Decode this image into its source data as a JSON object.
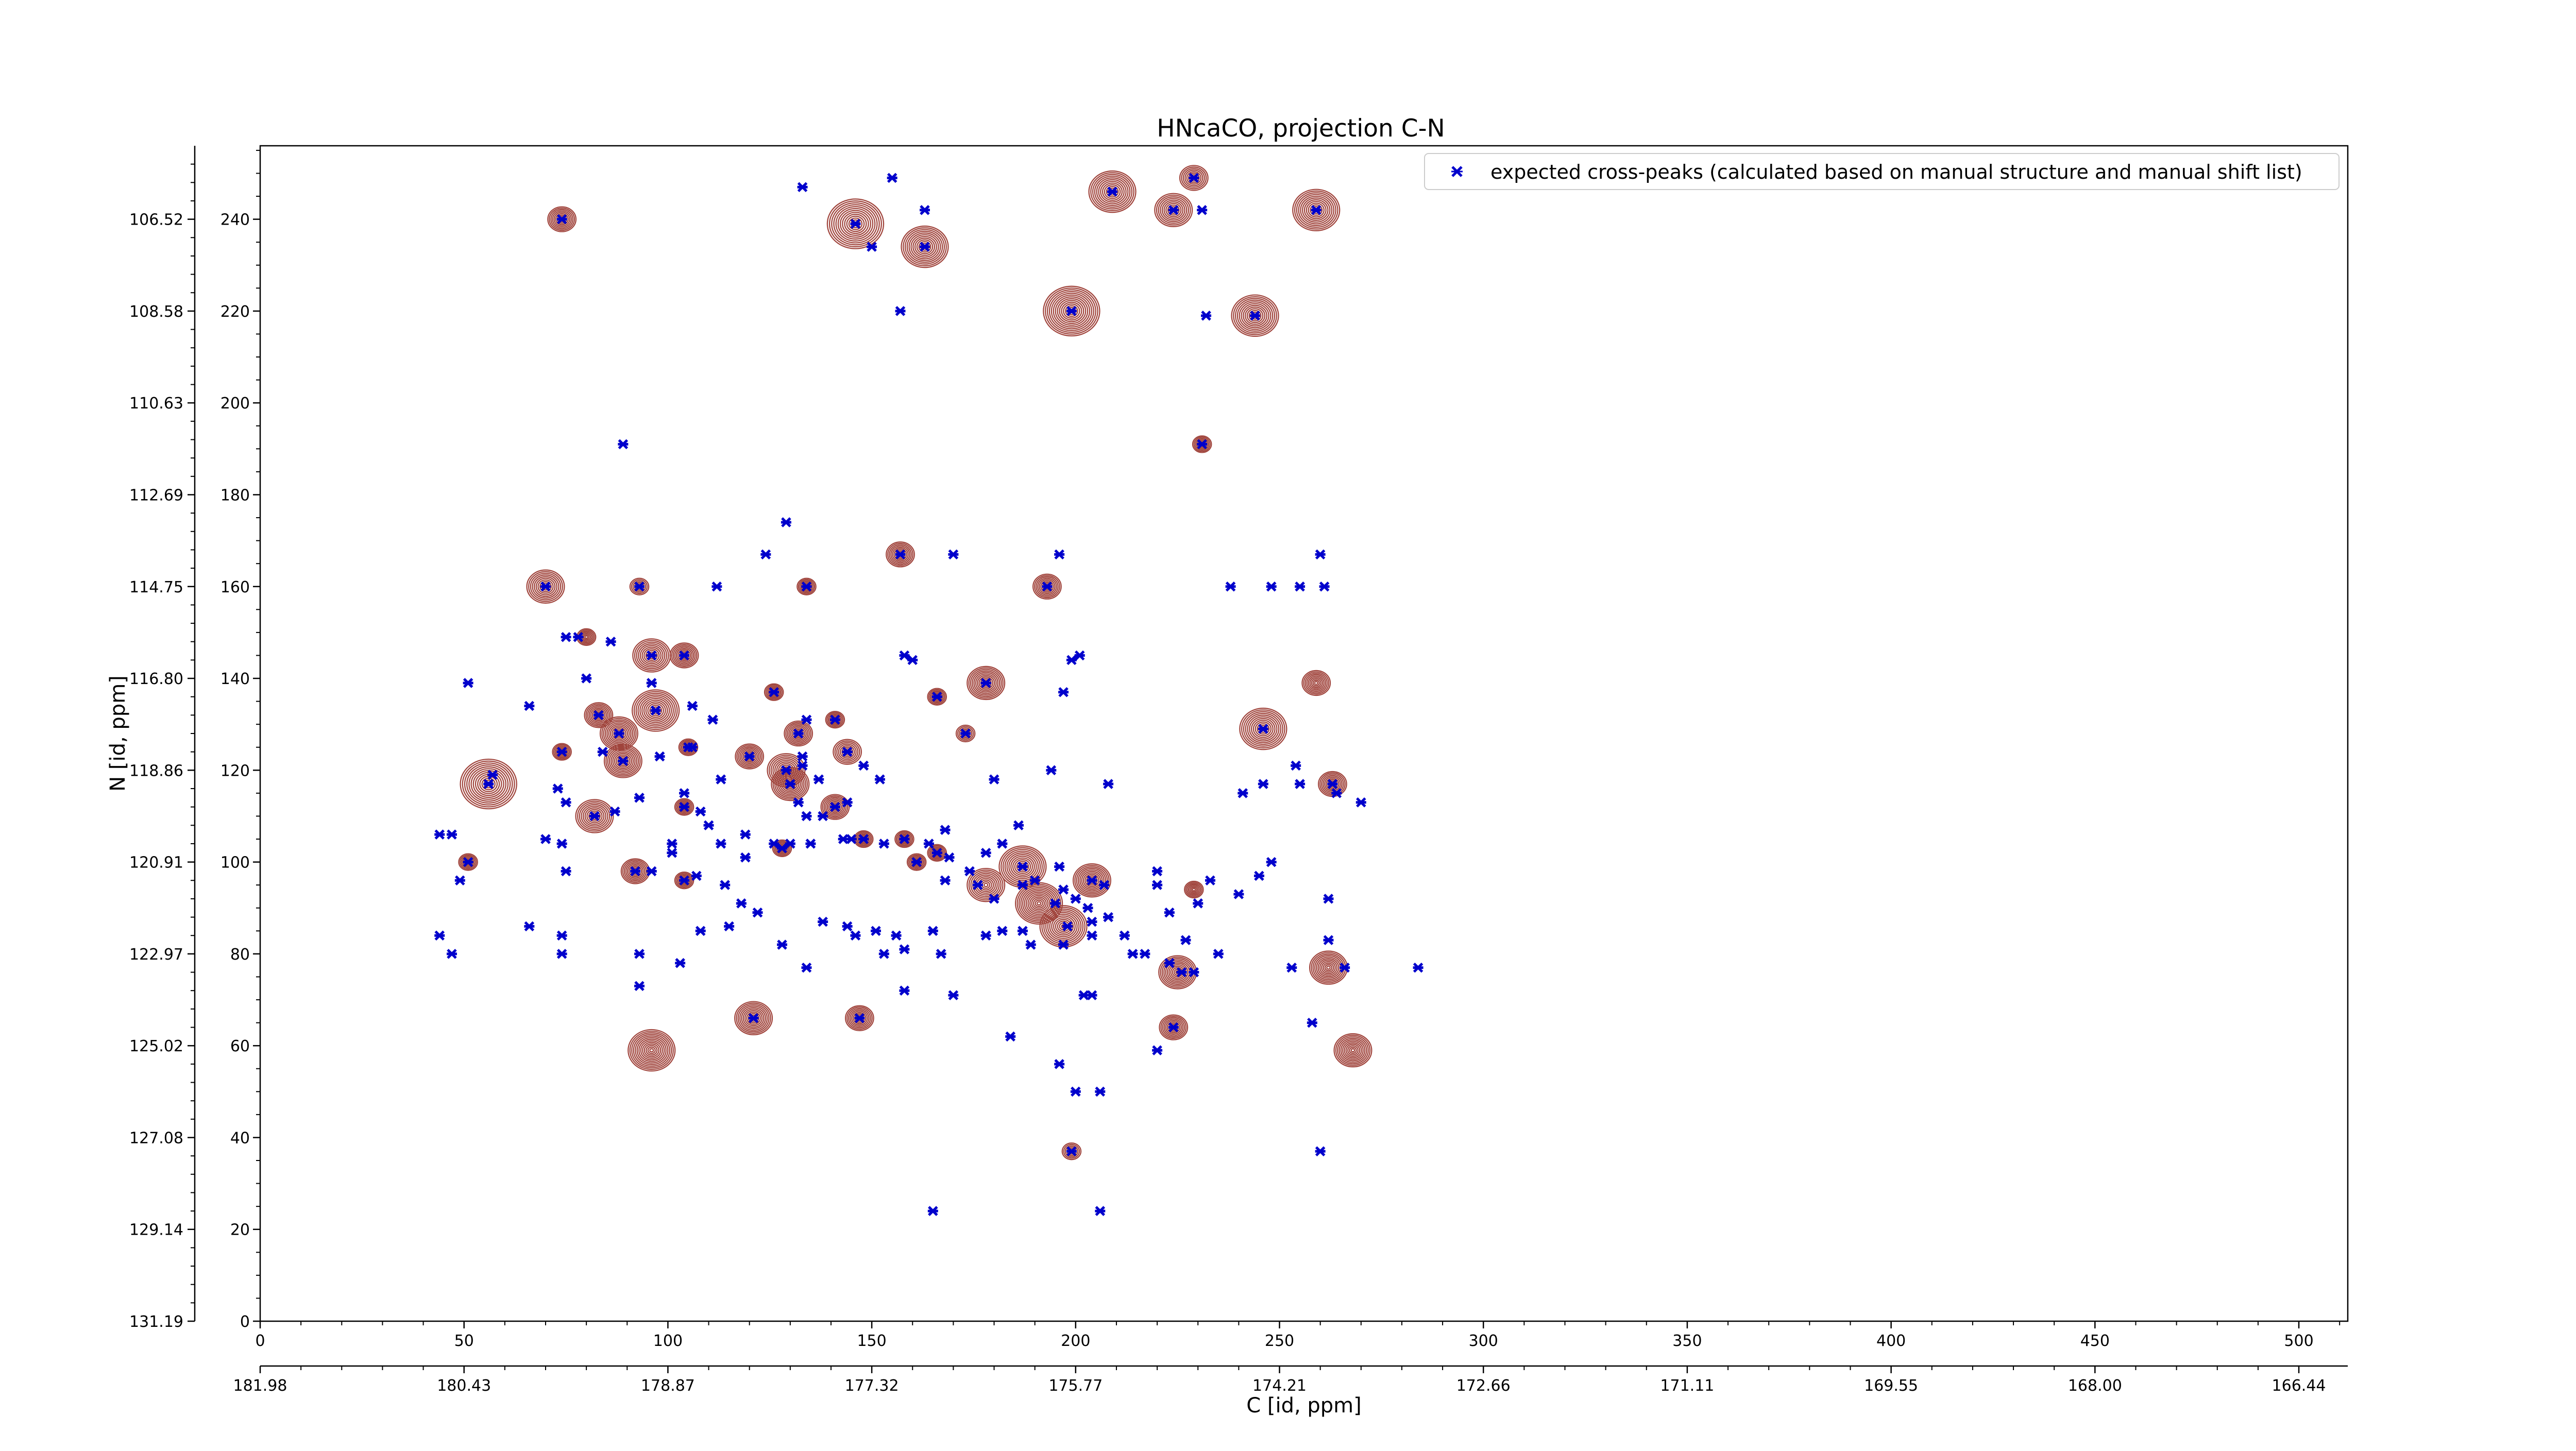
{
  "chart_data": {
    "type": "scatter",
    "title": "HNcaCO, projection C-N",
    "xlabel": "C [id, ppm]",
    "ylabel": "N [id, ppm]",
    "xlim": [
      0,
      512
    ],
    "ylim": [
      0,
      256
    ],
    "grid": false,
    "legend_position": "top-right",
    "x_ticks": [
      0,
      50,
      100,
      150,
      200,
      250,
      300,
      350,
      400,
      450,
      500
    ],
    "y_ticks": [
      0,
      20,
      40,
      60,
      80,
      100,
      120,
      140,
      160,
      180,
      200,
      220,
      240
    ],
    "x_ppm_ticks": [
      "181.98",
      "180.43",
      "178.87",
      "177.32",
      "175.77",
      "174.21",
      "172.66",
      "171.11",
      "169.55",
      "168.00",
      "166.44"
    ],
    "y_ppm_ticks": [
      "131.19",
      "129.14",
      "127.08",
      "125.02",
      "122.97",
      "120.91",
      "118.86",
      "116.80",
      "114.75",
      "112.69",
      "110.63",
      "108.58",
      "106.52"
    ],
    "series": [
      {
        "name": "expected cross-peaks (calculated based on manual structure and manual shift list)",
        "color": "#0000cc",
        "marker": "x",
        "points": [
          [
            74,
            240
          ],
          [
            133,
            247
          ],
          [
            146,
            239
          ],
          [
            155,
            249
          ],
          [
            163,
            242
          ],
          [
            150,
            234
          ],
          [
            163,
            234
          ],
          [
            157,
            220
          ],
          [
            199,
            220
          ],
          [
            209,
            246
          ],
          [
            224,
            242
          ],
          [
            229,
            249
          ],
          [
            231,
            242
          ],
          [
            259,
            242
          ],
          [
            232,
            219
          ],
          [
            244,
            219
          ],
          [
            89,
            191
          ],
          [
            231,
            191
          ],
          [
            129,
            174
          ],
          [
            70,
            160
          ],
          [
            93,
            160
          ],
          [
            112,
            160
          ],
          [
            124,
            167
          ],
          [
            134,
            160
          ],
          [
            157,
            167
          ],
          [
            170,
            167
          ],
          [
            193,
            160
          ],
          [
            196,
            167
          ],
          [
            238,
            160
          ],
          [
            248,
            160
          ],
          [
            255,
            160
          ],
          [
            260,
            167
          ],
          [
            261,
            160
          ],
          [
            75,
            149
          ],
          [
            78,
            149
          ],
          [
            86,
            148
          ],
          [
            96,
            145
          ],
          [
            104,
            145
          ],
          [
            51,
            139
          ],
          [
            66,
            134
          ],
          [
            80,
            140
          ],
          [
            83,
            132
          ],
          [
            88,
            128
          ],
          [
            96,
            139
          ],
          [
            97,
            133
          ],
          [
            106,
            134
          ],
          [
            106,
            125
          ],
          [
            111,
            131
          ],
          [
            126,
            137
          ],
          [
            132,
            128
          ],
          [
            134,
            131
          ],
          [
            133,
            123
          ],
          [
            141,
            131
          ],
          [
            74,
            124
          ],
          [
            84,
            124
          ],
          [
            89,
            122
          ],
          [
            98,
            123
          ],
          [
            105,
            125
          ],
          [
            120,
            123
          ],
          [
            113,
            118
          ],
          [
            129,
            120
          ],
          [
            137,
            118
          ],
          [
            133,
            121
          ],
          [
            144,
            124
          ],
          [
            148,
            121
          ],
          [
            152,
            118
          ],
          [
            158,
            145
          ],
          [
            160,
            144
          ],
          [
            166,
            136
          ],
          [
            173,
            128
          ],
          [
            178,
            139
          ],
          [
            197,
            137
          ],
          [
            199,
            144
          ],
          [
            201,
            145
          ],
          [
            208,
            117
          ],
          [
            194,
            120
          ],
          [
            180,
            118
          ],
          [
            57,
            119
          ],
          [
            56,
            117
          ],
          [
            73,
            116
          ],
          [
            75,
            113
          ],
          [
            82,
            110
          ],
          [
            87,
            111
          ],
          [
            93,
            114
          ],
          [
            104,
            115
          ],
          [
            104,
            112
          ],
          [
            108,
            111
          ],
          [
            130,
            117
          ],
          [
            132,
            113
          ],
          [
            134,
            110
          ],
          [
            138,
            110
          ],
          [
            141,
            112
          ],
          [
            144,
            113
          ],
          [
            135,
            104
          ],
          [
            128,
            103
          ],
          [
            119,
            106
          ],
          [
            110,
            108
          ],
          [
            113,
            104
          ],
          [
            51,
            100
          ],
          [
            49,
            96
          ],
          [
            44,
            106
          ],
          [
            47,
            106
          ],
          [
            70,
            105
          ],
          [
            74,
            104
          ],
          [
            75,
            98
          ],
          [
            101,
            104
          ],
          [
            101,
            102
          ],
          [
            96,
            98
          ],
          [
            92,
            98
          ],
          [
            104,
            96
          ],
          [
            107,
            97
          ],
          [
            114,
            95
          ],
          [
            119,
            101
          ],
          [
            126,
            104
          ],
          [
            130,
            104
          ],
          [
            143,
            105
          ],
          [
            145,
            105
          ],
          [
            148,
            105
          ],
          [
            153,
            104
          ],
          [
            158,
            105
          ],
          [
            164,
            104
          ],
          [
            161,
            100
          ],
          [
            166,
            102
          ],
          [
            168,
            107
          ],
          [
            168,
            96
          ],
          [
            169,
            101
          ],
          [
            174,
            98
          ],
          [
            176,
            95
          ],
          [
            178,
            102
          ],
          [
            182,
            104
          ],
          [
            186,
            108
          ],
          [
            187,
            99
          ],
          [
            190,
            96
          ],
          [
            196,
            99
          ],
          [
            197,
            94
          ],
          [
            200,
            92
          ],
          [
            203,
            90
          ],
          [
            204,
            96
          ],
          [
            208,
            88
          ],
          [
            207,
            95
          ],
          [
            204,
            84
          ],
          [
            220,
            98
          ],
          [
            220,
            95
          ],
          [
            233,
            96
          ],
          [
            245,
            97
          ],
          [
            248,
            100
          ],
          [
            246,
            117
          ],
          [
            246,
            129
          ],
          [
            254,
            121
          ],
          [
            255,
            117
          ],
          [
            263,
            117
          ],
          [
            264,
            115
          ],
          [
            270,
            113
          ],
          [
            180,
            92
          ],
          [
            187,
            95
          ],
          [
            195,
            91
          ],
          [
            198,
            86
          ],
          [
            187,
            85
          ],
          [
            178,
            84
          ],
          [
            182,
            85
          ],
          [
            189,
            82
          ],
          [
            197,
            82
          ],
          [
            204,
            87
          ],
          [
            212,
            84
          ],
          [
            214,
            80
          ],
          [
            217,
            80
          ],
          [
            223,
            78
          ],
          [
            226,
            76
          ],
          [
            229,
            76
          ],
          [
            235,
            80
          ],
          [
            227,
            83
          ],
          [
            223,
            89
          ],
          [
            230,
            91
          ],
          [
            240,
            93
          ],
          [
            262,
            92
          ],
          [
            262,
            83
          ],
          [
            253,
            77
          ],
          [
            266,
            77
          ],
          [
            284,
            77
          ],
          [
            44,
            84
          ],
          [
            47,
            80
          ],
          [
            66,
            86
          ],
          [
            74,
            84
          ],
          [
            74,
            80
          ],
          [
            93,
            80
          ],
          [
            103,
            78
          ],
          [
            115,
            86
          ],
          [
            118,
            91
          ],
          [
            122,
            89
          ],
          [
            128,
            82
          ],
          [
            134,
            77
          ],
          [
            138,
            87
          ],
          [
            144,
            86
          ],
          [
            146,
            84
          ],
          [
            151,
            85
          ],
          [
            156,
            84
          ],
          [
            158,
            81
          ],
          [
            165,
            85
          ],
          [
            167,
            80
          ],
          [
            153,
            80
          ],
          [
            158,
            72
          ],
          [
            170,
            71
          ],
          [
            202,
            71
          ],
          [
            204,
            71
          ],
          [
            93,
            73
          ],
          [
            108,
            85
          ],
          [
            184,
            62
          ],
          [
            196,
            56
          ],
          [
            200,
            50
          ],
          [
            206,
            50
          ],
          [
            199,
            37
          ],
          [
            165,
            24
          ],
          [
            206,
            24
          ],
          [
            220,
            59
          ],
          [
            121,
            66
          ],
          [
            147,
            66
          ],
          [
            224,
            64
          ],
          [
            260,
            37
          ],
          [
            258,
            65
          ],
          [
            241,
            115
          ]
        ]
      }
    ],
    "contour_peaks": [
      [
        74,
        240,
        3,
        9
      ],
      [
        146,
        239,
        6,
        13
      ],
      [
        163,
        234,
        5,
        12
      ],
      [
        209,
        246,
        5,
        12
      ],
      [
        224,
        242,
        4,
        10
      ],
      [
        229,
        249,
        3,
        8
      ],
      [
        259,
        242,
        5,
        12
      ],
      [
        199,
        220,
        6,
        14
      ],
      [
        244,
        219,
        5,
        12
      ],
      [
        231,
        191,
        2,
        7
      ],
      [
        70,
        160,
        4,
        10
      ],
      [
        93,
        160,
        2,
        6
      ],
      [
        134,
        160,
        2,
        7
      ],
      [
        157,
        167,
        3,
        9
      ],
      [
        193,
        160,
        3,
        9
      ],
      [
        80,
        149,
        2,
        7
      ],
      [
        96,
        145,
        4,
        10
      ],
      [
        104,
        145,
        3,
        9
      ],
      [
        97,
        133,
        5,
        12
      ],
      [
        88,
        128,
        4,
        11
      ],
      [
        83,
        132,
        3,
        9
      ],
      [
        126,
        137,
        2,
        7
      ],
      [
        132,
        128,
        3,
        9
      ],
      [
        141,
        131,
        2,
        7
      ],
      [
        178,
        139,
        4,
        11
      ],
      [
        166,
        136,
        2,
        7
      ],
      [
        259,
        139,
        3,
        9
      ],
      [
        74,
        124,
        2,
        7
      ],
      [
        89,
        122,
        4,
        11
      ],
      [
        105,
        125,
        2,
        7
      ],
      [
        120,
        123,
        3,
        9
      ],
      [
        129,
        120,
        4,
        10
      ],
      [
        144,
        124,
        3,
        8
      ],
      [
        56,
        117,
        6,
        13
      ],
      [
        82,
        110,
        4,
        10
      ],
      [
        104,
        112,
        2,
        7
      ],
      [
        130,
        117,
        4,
        11
      ],
      [
        141,
        112,
        3,
        9
      ],
      [
        161,
        100,
        2,
        7
      ],
      [
        158,
        105,
        2,
        7
      ],
      [
        166,
        102,
        2,
        7
      ],
      [
        173,
        128,
        2,
        6
      ],
      [
        246,
        129,
        5,
        12
      ],
      [
        263,
        117,
        3,
        9
      ],
      [
        51,
        100,
        2,
        7
      ],
      [
        92,
        98,
        3,
        9
      ],
      [
        104,
        96,
        2,
        7
      ],
      [
        128,
        103,
        2,
        7
      ],
      [
        148,
        105,
        2,
        7
      ],
      [
        187,
        99,
        5,
        12
      ],
      [
        178,
        95,
        4,
        10
      ],
      [
        191,
        91,
        5,
        13
      ],
      [
        204,
        96,
        4,
        11
      ],
      [
        197,
        86,
        5,
        12
      ],
      [
        225,
        76,
        4,
        11
      ],
      [
        229,
        94,
        2,
        7
      ],
      [
        262,
        77,
        4,
        11
      ],
      [
        121,
        66,
        4,
        11
      ],
      [
        147,
        66,
        3,
        9
      ],
      [
        224,
        64,
        3,
        9
      ],
      [
        96,
        59,
        5,
        13
      ],
      [
        268,
        59,
        4,
        11
      ],
      [
        199,
        37,
        2,
        6
      ]
    ]
  }
}
